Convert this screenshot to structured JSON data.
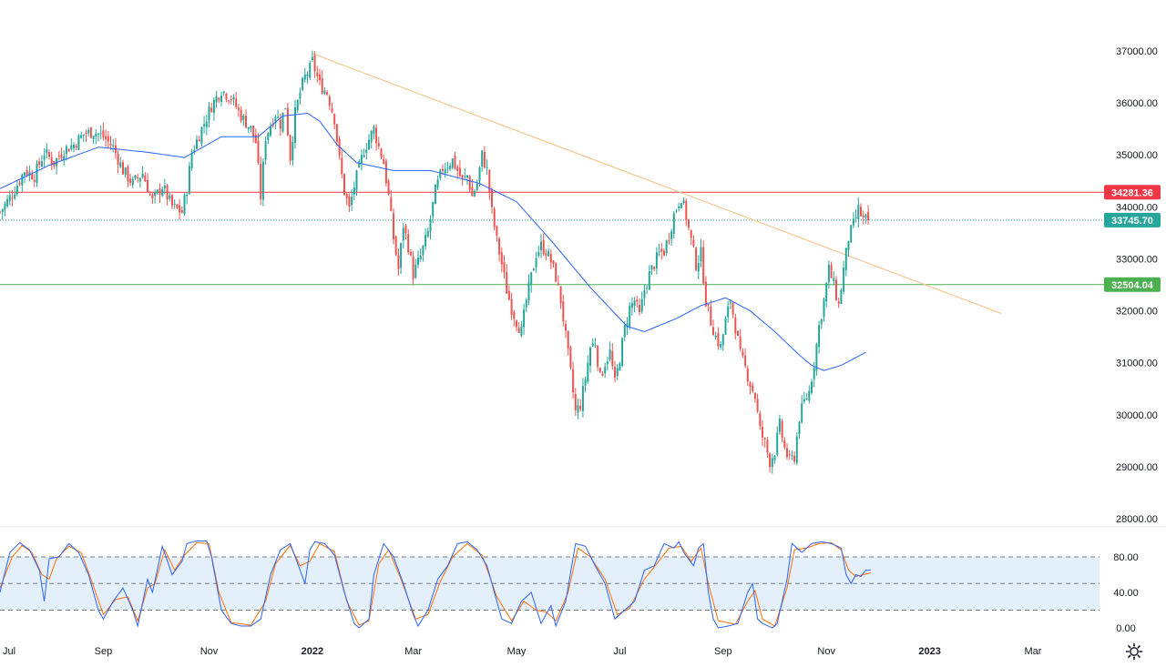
{
  "colors": {
    "up": "#26a69a",
    "down": "#ef5350",
    "ma": "#2962ff",
    "trendline": "#f7c790",
    "resistance": "#f23645",
    "support": "#4caf50",
    "stoch_k": "#2962ff",
    "stoch_d": "#ff6d00",
    "band_fill": "#e3f0fc",
    "grid_dash": "#787b86",
    "axis_text": "#131722",
    "separator": "#e0e3eb"
  },
  "settings_icon": "gear-icon",
  "price_axis": {
    "ticks": [
      "37000.00",
      "36000.00",
      "35000.00",
      "34000.00",
      "33000.00",
      "32000.00",
      "31000.00",
      "30000.00",
      "29000.00",
      "28000.00"
    ],
    "tick_values": [
      37000,
      36000,
      35000,
      34000,
      33000,
      32000,
      31000,
      30000,
      29000,
      28000
    ]
  },
  "stoch_axis": {
    "ticks": [
      "80.00",
      "40.00",
      "0.00"
    ],
    "tick_values": [
      80,
      40,
      0
    ]
  },
  "time_axis": {
    "labels": [
      "Jul",
      "Sep",
      "Nov",
      "2022",
      "Mar",
      "May",
      "Jul",
      "Sep",
      "Nov",
      "2023",
      "Mar"
    ],
    "label_indices": [
      0,
      42,
      85,
      127,
      168,
      210,
      252,
      294,
      336,
      378,
      420
    ],
    "bold_labels": [
      "2022",
      "2023"
    ]
  },
  "price_labels": {
    "resistance": "34281.36",
    "last": "33745.70",
    "support": "32504.04"
  },
  "chart_data": {
    "type": "candlestick",
    "instrument_levels": {
      "resistance": 34281.36,
      "last_close": 33745.7,
      "support": 32504.04
    },
    "ylim": [
      27800,
      37300
    ],
    "trendline": {
      "from": {
        "index": 127,
        "value": 36950
      },
      "to": {
        "index": 407,
        "value": 31950
      }
    },
    "close_points": [
      [
        0,
        33900
      ],
      [
        5,
        34250
      ],
      [
        10,
        34700
      ],
      [
        14,
        34600
      ],
      [
        18,
        35050
      ],
      [
        22,
        34850
      ],
      [
        26,
        35100
      ],
      [
        30,
        35200
      ],
      [
        34,
        35400
      ],
      [
        38,
        35450
      ],
      [
        42,
        35350
      ],
      [
        46,
        35150
      ],
      [
        50,
        34700
      ],
      [
        54,
        34450
      ],
      [
        58,
        34650
      ],
      [
        62,
        34100
      ],
      [
        66,
        34400
      ],
      [
        70,
        34000
      ],
      [
        74,
        33900
      ],
      [
        76,
        34350
      ],
      [
        78,
        35050
      ],
      [
        82,
        35500
      ],
      [
        86,
        35950
      ],
      [
        90,
        36250
      ],
      [
        94,
        36100
      ],
      [
        98,
        35750
      ],
      [
        102,
        35500
      ],
      [
        104,
        35250
      ],
      [
        106,
        34200
      ],
      [
        108,
        35350
      ],
      [
        112,
        35800
      ],
      [
        114,
        35600
      ],
      [
        116,
        35950
      ],
      [
        118,
        34950
      ],
      [
        120,
        35800
      ],
      [
        122,
        36200
      ],
      [
        124,
        36500
      ],
      [
        126,
        36650
      ],
      [
        127,
        36800
      ],
      [
        130,
        36350
      ],
      [
        133,
        36200
      ],
      [
        136,
        35700
      ],
      [
        138,
        34900
      ],
      [
        140,
        34300
      ],
      [
        142,
        33950
      ],
      [
        144,
        34400
      ],
      [
        148,
        35100
      ],
      [
        152,
        35500
      ],
      [
        154,
        35150
      ],
      [
        156,
        34850
      ],
      [
        158,
        34200
      ],
      [
        160,
        33400
      ],
      [
        162,
        32800
      ],
      [
        164,
        33650
      ],
      [
        166,
        33250
      ],
      [
        168,
        32700
      ],
      [
        171,
        33050
      ],
      [
        174,
        33500
      ],
      [
        177,
        34300
      ],
      [
        180,
        34750
      ],
      [
        184,
        34900
      ],
      [
        188,
        34500
      ],
      [
        190,
        34600
      ],
      [
        192,
        34200
      ],
      [
        194,
        34450
      ],
      [
        196,
        35000
      ],
      [
        198,
        34700
      ],
      [
        200,
        33900
      ],
      [
        202,
        33350
      ],
      [
        204,
        32900
      ],
      [
        206,
        32400
      ],
      [
        208,
        32050
      ],
      [
        210,
        31800
      ],
      [
        212,
        31600
      ],
      [
        214,
        32200
      ],
      [
        216,
        32650
      ],
      [
        218,
        33100
      ],
      [
        220,
        33250
      ],
      [
        222,
        33150
      ],
      [
        224,
        32950
      ],
      [
        226,
        32650
      ],
      [
        228,
        32200
      ],
      [
        230,
        31500
      ],
      [
        232,
        30800
      ],
      [
        234,
        30050
      ],
      [
        236,
        30200
      ],
      [
        238,
        30700
      ],
      [
        240,
        31300
      ],
      [
        242,
        31400
      ],
      [
        244,
        30700
      ],
      [
        246,
        31000
      ],
      [
        248,
        31200
      ],
      [
        250,
        30600
      ],
      [
        252,
        31100
      ],
      [
        254,
        31650
      ],
      [
        256,
        32050
      ],
      [
        258,
        32200
      ],
      [
        260,
        31900
      ],
      [
        262,
        32400
      ],
      [
        264,
        32700
      ],
      [
        266,
        32900
      ],
      [
        268,
        33100
      ],
      [
        270,
        33150
      ],
      [
        272,
        33450
      ],
      [
        274,
        33850
      ],
      [
        276,
        34100
      ],
      [
        277,
        34200
      ],
      [
        279,
        33800
      ],
      [
        281,
        33350
      ],
      [
        283,
        32900
      ],
      [
        285,
        33100
      ],
      [
        287,
        32200
      ],
      [
        289,
        31800
      ],
      [
        291,
        31500
      ],
      [
        293,
        31300
      ],
      [
        295,
        31800
      ],
      [
        297,
        32200
      ],
      [
        299,
        31700
      ],
      [
        301,
        31150
      ],
      [
        303,
        30900
      ],
      [
        305,
        30600
      ],
      [
        307,
        30350
      ],
      [
        309,
        29700
      ],
      [
        311,
        29450
      ],
      [
        313,
        29100
      ],
      [
        315,
        29300
      ],
      [
        317,
        29800
      ],
      [
        319,
        29350
      ],
      [
        321,
        29100
      ],
      [
        323,
        29200
      ],
      [
        325,
        29950
      ],
      [
        327,
        30250
      ],
      [
        329,
        30450
      ],
      [
        331,
        31000
      ],
      [
        333,
        31700
      ],
      [
        335,
        32200
      ],
      [
        337,
        32800
      ],
      [
        339,
        32500
      ],
      [
        341,
        32100
      ],
      [
        343,
        32800
      ],
      [
        345,
        33400
      ],
      [
        347,
        33650
      ],
      [
        349,
        33950
      ],
      [
        351,
        33750
      ],
      [
        353,
        33750
      ]
    ],
    "ma_points": [
      [
        0,
        34350
      ],
      [
        20,
        34800
      ],
      [
        40,
        35150
      ],
      [
        60,
        35050
      ],
      [
        75,
        34950
      ],
      [
        90,
        35350
      ],
      [
        105,
        35350
      ],
      [
        115,
        35750
      ],
      [
        125,
        35800
      ],
      [
        130,
        35650
      ],
      [
        137,
        35200
      ],
      [
        145,
        34850
      ],
      [
        160,
        34700
      ],
      [
        175,
        34700
      ],
      [
        195,
        34450
      ],
      [
        210,
        34100
      ],
      [
        225,
        33300
      ],
      [
        240,
        32450
      ],
      [
        255,
        31700
      ],
      [
        262,
        31600
      ],
      [
        275,
        31850
      ],
      [
        285,
        32100
      ],
      [
        295,
        32250
      ],
      [
        305,
        32000
      ],
      [
        315,
        31600
      ],
      [
        325,
        31150
      ],
      [
        330,
        30950
      ],
      [
        335,
        30850
      ],
      [
        342,
        30950
      ],
      [
        350,
        31150
      ],
      [
        352,
        31200
      ]
    ],
    "stoch_k_points": [
      [
        0,
        40
      ],
      [
        4,
        85
      ],
      [
        8,
        96
      ],
      [
        12,
        88
      ],
      [
        16,
        65
      ],
      [
        18,
        30
      ],
      [
        20,
        78
      ],
      [
        24,
        80
      ],
      [
        28,
        95
      ],
      [
        32,
        85
      ],
      [
        36,
        60
      ],
      [
        40,
        20
      ],
      [
        42,
        10
      ],
      [
        46,
        30
      ],
      [
        50,
        45
      ],
      [
        54,
        20
      ],
      [
        56,
        2
      ],
      [
        60,
        55
      ],
      [
        62,
        40
      ],
      [
        66,
        92
      ],
      [
        70,
        60
      ],
      [
        74,
        75
      ],
      [
        76,
        95
      ],
      [
        80,
        98
      ],
      [
        84,
        98
      ],
      [
        86,
        80
      ],
      [
        90,
        20
      ],
      [
        94,
        5
      ],
      [
        98,
        2
      ],
      [
        102,
        2
      ],
      [
        106,
        10
      ],
      [
        110,
        60
      ],
      [
        114,
        88
      ],
      [
        118,
        95
      ],
      [
        120,
        80
      ],
      [
        124,
        50
      ],
      [
        126,
        88
      ],
      [
        128,
        97
      ],
      [
        132,
        95
      ],
      [
        136,
        82
      ],
      [
        140,
        40
      ],
      [
        144,
        5
      ],
      [
        146,
        0
      ],
      [
        148,
        5
      ],
      [
        150,
        10
      ],
      [
        152,
        60
      ],
      [
        156,
        95
      ],
      [
        160,
        80
      ],
      [
        164,
        50
      ],
      [
        168,
        15
      ],
      [
        170,
        2
      ],
      [
        174,
        20
      ],
      [
        178,
        55
      ],
      [
        182,
        70
      ],
      [
        186,
        95
      ],
      [
        190,
        97
      ],
      [
        194,
        88
      ],
      [
        198,
        70
      ],
      [
        202,
        30
      ],
      [
        204,
        10
      ],
      [
        208,
        5
      ],
      [
        212,
        30
      ],
      [
        216,
        40
      ],
      [
        220,
        5
      ],
      [
        224,
        25
      ],
      [
        226,
        2
      ],
      [
        230,
        30
      ],
      [
        234,
        95
      ],
      [
        238,
        92
      ],
      [
        242,
        70
      ],
      [
        246,
        50
      ],
      [
        250,
        10
      ],
      [
        254,
        20
      ],
      [
        258,
        30
      ],
      [
        262,
        65
      ],
      [
        266,
        70
      ],
      [
        270,
        95
      ],
      [
        274,
        90
      ],
      [
        276,
        97
      ],
      [
        278,
        85
      ],
      [
        282,
        70
      ],
      [
        284,
        90
      ],
      [
        286,
        95
      ],
      [
        288,
        40
      ],
      [
        290,
        10
      ],
      [
        292,
        0
      ],
      [
        296,
        2
      ],
      [
        300,
        5
      ],
      [
        304,
        40
      ],
      [
        306,
        50
      ],
      [
        308,
        10
      ],
      [
        310,
        5
      ],
      [
        314,
        0
      ],
      [
        316,
        5
      ],
      [
        320,
        55
      ],
      [
        322,
        95
      ],
      [
        326,
        85
      ],
      [
        330,
        95
      ],
      [
        334,
        97
      ],
      [
        338,
        95
      ],
      [
        342,
        90
      ],
      [
        344,
        60
      ],
      [
        346,
        50
      ],
      [
        348,
        60
      ],
      [
        350,
        58
      ],
      [
        352,
        65
      ],
      [
        354,
        65
      ]
    ],
    "stoch_d_points": [
      [
        0,
        45
      ],
      [
        5,
        80
      ],
      [
        9,
        93
      ],
      [
        13,
        85
      ],
      [
        17,
        60
      ],
      [
        20,
        55
      ],
      [
        23,
        78
      ],
      [
        28,
        92
      ],
      [
        33,
        85
      ],
      [
        37,
        55
      ],
      [
        42,
        15
      ],
      [
        47,
        32
      ],
      [
        52,
        35
      ],
      [
        56,
        8
      ],
      [
        60,
        45
      ],
      [
        63,
        50
      ],
      [
        67,
        88
      ],
      [
        71,
        65
      ],
      [
        75,
        82
      ],
      [
        80,
        96
      ],
      [
        85,
        95
      ],
      [
        89,
        40
      ],
      [
        94,
        6
      ],
      [
        102,
        3
      ],
      [
        108,
        30
      ],
      [
        112,
        72
      ],
      [
        118,
        93
      ],
      [
        122,
        70
      ],
      [
        126,
        75
      ],
      [
        130,
        95
      ],
      [
        136,
        86
      ],
      [
        141,
        30
      ],
      [
        146,
        3
      ],
      [
        150,
        8
      ],
      [
        154,
        72
      ],
      [
        158,
        88
      ],
      [
        163,
        55
      ],
      [
        169,
        10
      ],
      [
        174,
        15
      ],
      [
        179,
        52
      ],
      [
        184,
        80
      ],
      [
        190,
        95
      ],
      [
        196,
        82
      ],
      [
        202,
        35
      ],
      [
        208,
        8
      ],
      [
        213,
        30
      ],
      [
        218,
        20
      ],
      [
        222,
        18
      ],
      [
        226,
        8
      ],
      [
        231,
        40
      ],
      [
        235,
        90
      ],
      [
        240,
        80
      ],
      [
        246,
        55
      ],
      [
        251,
        15
      ],
      [
        256,
        22
      ],
      [
        262,
        55
      ],
      [
        267,
        72
      ],
      [
        272,
        90
      ],
      [
        277,
        92
      ],
      [
        281,
        75
      ],
      [
        285,
        90
      ],
      [
        288,
        50
      ],
      [
        292,
        8
      ],
      [
        299,
        4
      ],
      [
        304,
        30
      ],
      [
        307,
        42
      ],
      [
        310,
        10
      ],
      [
        315,
        2
      ],
      [
        320,
        45
      ],
      [
        323,
        88
      ],
      [
        328,
        90
      ],
      [
        333,
        95
      ],
      [
        338,
        96
      ],
      [
        342,
        88
      ],
      [
        345,
        65
      ],
      [
        348,
        58
      ],
      [
        351,
        60
      ],
      [
        354,
        62
      ]
    ],
    "stoch_levels": {
      "upper": 80,
      "middle": 50,
      "lower": 20
    },
    "stoch_ylim": [
      -5,
      105
    ],
    "dates_first": "Jul 2021",
    "dates_last": "Nov 2022"
  }
}
